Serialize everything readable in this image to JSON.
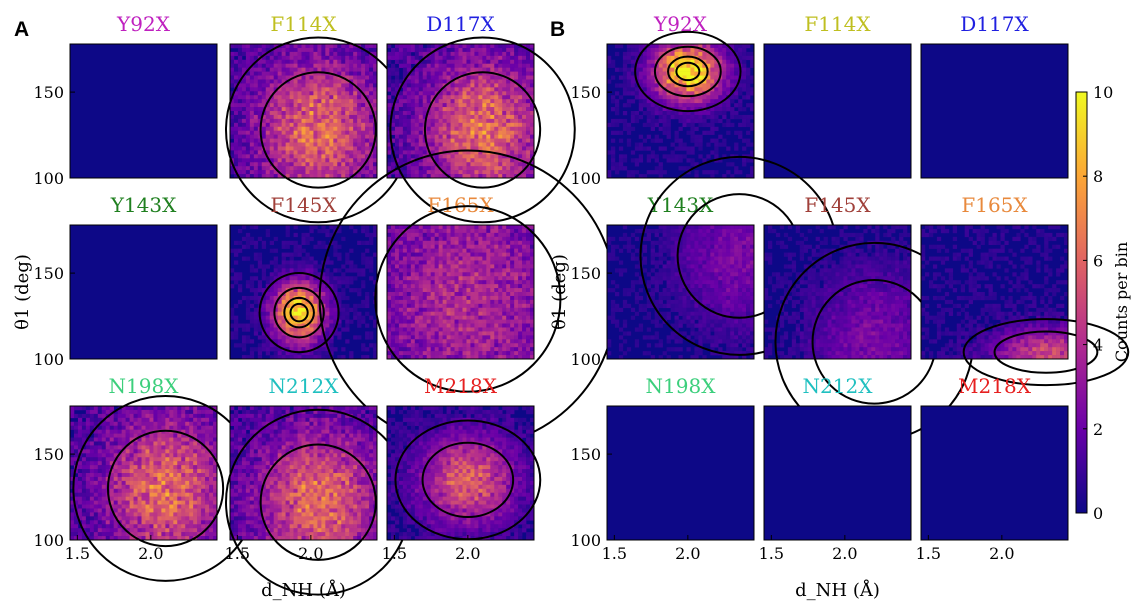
{
  "figure": {
    "panel_labels": [
      "A",
      "B"
    ],
    "colorbar": {
      "label": "Counts per bin",
      "ticks": [
        0,
        2,
        4,
        6,
        8,
        10
      ],
      "range": [
        0,
        10
      ],
      "colormap": "plasma",
      "colors": [
        "#0d0887",
        "#6a00a8",
        "#b12a90",
        "#e16462",
        "#fca636",
        "#f0f921"
      ]
    }
  },
  "chart_data": [
    {
      "panel": "A",
      "type": "heatmap",
      "layout": "3x3 small multiples",
      "xlabel": "d_NH (Å)",
      "ylabel": "θ1 (deg)",
      "xticks": [
        1.5,
        2.0
      ],
      "yticks": [
        100,
        150
      ],
      "xlim": [
        1.45,
        2.45
      ],
      "ylim": [
        100,
        178
      ],
      "subplots": [
        {
          "title": "Y92X",
          "title_color": "#bf20bf",
          "density": "none",
          "peak": null
        },
        {
          "title": "F114X",
          "title_color": "#bfbf20",
          "density": "broad",
          "peak": [
            2.05,
            128
          ]
        },
        {
          "title": "D117X",
          "title_color": "#2020e0",
          "density": "broad",
          "peak": [
            2.1,
            128
          ]
        },
        {
          "title": "Y143X",
          "title_color": "#208020",
          "density": "none",
          "peak": null
        },
        {
          "title": "F145X",
          "title_color": "#a0403a",
          "density": "peaked",
          "peak": [
            1.92,
            127
          ]
        },
        {
          "title": "F165X",
          "title_color": "#e8893c",
          "density": "diffuse",
          "peak": [
            2.0,
            135
          ]
        },
        {
          "title": "N198X",
          "title_color": "#3ccf7c",
          "density": "broad",
          "peak": [
            2.1,
            130
          ]
        },
        {
          "title": "N212X",
          "title_color": "#20c0c0",
          "density": "broad",
          "peak": [
            2.05,
            122
          ]
        },
        {
          "title": "M218X",
          "title_color": "#e62020",
          "density": "moderate",
          "peak": [
            2.0,
            135
          ]
        }
      ]
    },
    {
      "panel": "B",
      "type": "heatmap",
      "layout": "3x3 small multiples",
      "xlabel": "d_NH (Å)",
      "ylabel": "θ1 (deg)",
      "xticks": [
        1.5,
        2.0
      ],
      "yticks": [
        100,
        150
      ],
      "xlim": [
        1.45,
        2.45
      ],
      "ylim": [
        100,
        178
      ],
      "subplots": [
        {
          "title": "Y92X",
          "title_color": "#bf20bf",
          "density": "strong",
          "peak": [
            2.0,
            162
          ]
        },
        {
          "title": "F114X",
          "title_color": "#bfbf20",
          "density": "none",
          "peak": null
        },
        {
          "title": "D117X",
          "title_color": "#2020e0",
          "density": "none",
          "peak": null
        },
        {
          "title": "Y143X",
          "title_color": "#208020",
          "density": "faint",
          "peak": [
            2.35,
            160
          ]
        },
        {
          "title": "F145X",
          "title_color": "#a0403a",
          "density": "faint",
          "peak": [
            2.2,
            110
          ]
        },
        {
          "title": "F165X",
          "title_color": "#e8893c",
          "density": "edge",
          "peak": [
            2.3,
            104
          ]
        },
        {
          "title": "N198X",
          "title_color": "#3ccf7c",
          "density": "none",
          "peak": null
        },
        {
          "title": "N212X",
          "title_color": "#20c0c0",
          "density": "none",
          "peak": null
        },
        {
          "title": "M218X",
          "title_color": "#e62020",
          "density": "none",
          "peak": null
        }
      ]
    }
  ]
}
